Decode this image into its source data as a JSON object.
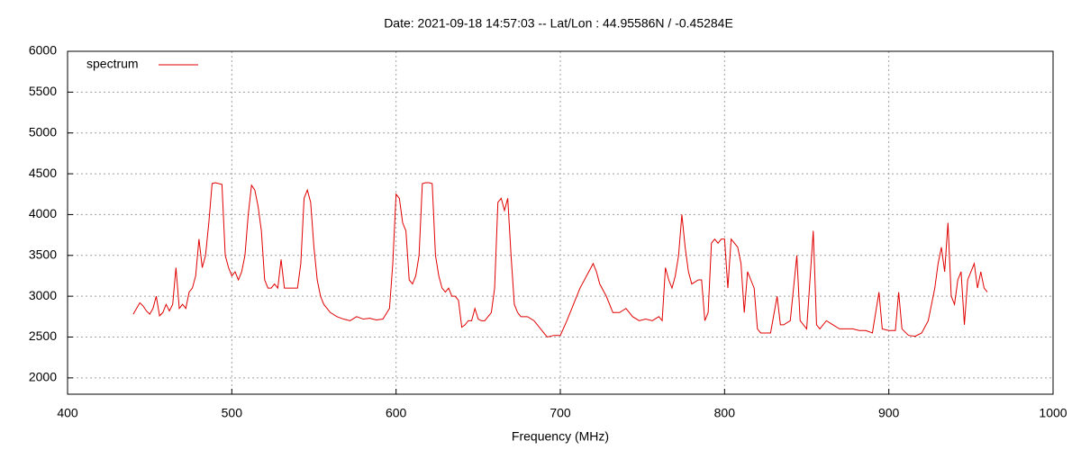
{
  "chart_data": {
    "type": "line",
    "title": "Date: 2021-09-18 14:57:03  --  Lat/Lon : 44.95586N / -0.45284E",
    "x_label": "Frequency (MHz)",
    "xlim": [
      400,
      1000
    ],
    "xticks": [
      400,
      500,
      600,
      700,
      800,
      900,
      1000
    ],
    "ylim": [
      1800,
      6000
    ],
    "yticks": [
      2000,
      2500,
      3000,
      3500,
      4000,
      4500,
      5000,
      5500,
      6000
    ],
    "grid": true,
    "legend": "top-left",
    "x": [
      440,
      442,
      444,
      446,
      448,
      450,
      452,
      454,
      456,
      458,
      460,
      462,
      464,
      466,
      468,
      470,
      472,
      474,
      476,
      478,
      480,
      482,
      484,
      486,
      488,
      490,
      492,
      494,
      496,
      498,
      500,
      502,
      504,
      506,
      508,
      510,
      512,
      514,
      516,
      518,
      520,
      522,
      524,
      526,
      528,
      530,
      532,
      534,
      536,
      538,
      540,
      542,
      544,
      546,
      548,
      550,
      552,
      554,
      556,
      560,
      564,
      568,
      572,
      576,
      580,
      584,
      588,
      592,
      596,
      598,
      600,
      602,
      604,
      606,
      608,
      610,
      612,
      614,
      616,
      618,
      620,
      622,
      624,
      626,
      628,
      630,
      632,
      634,
      636,
      638,
      640,
      642,
      644,
      646,
      648,
      650,
      652,
      654,
      656,
      658,
      660,
      662,
      664,
      666,
      668,
      670,
      672,
      674,
      676,
      680,
      684,
      688,
      692,
      696,
      700,
      704,
      708,
      712,
      716,
      720,
      722,
      724,
      728,
      732,
      736,
      740,
      744,
      748,
      752,
      756,
      760,
      762,
      764,
      766,
      768,
      770,
      772,
      774,
      776,
      778,
      780,
      784,
      786,
      788,
      790,
      792,
      794,
      796,
      798,
      800,
      802,
      804,
      806,
      808,
      810,
      812,
      814,
      816,
      818,
      820,
      822,
      824,
      828,
      832,
      834,
      836,
      840,
      844,
      846,
      848,
      850,
      852,
      854,
      856,
      858,
      862,
      866,
      870,
      874,
      878,
      882,
      886,
      890,
      894,
      896,
      900,
      904,
      906,
      908,
      912,
      916,
      920,
      924,
      926,
      928,
      930,
      932,
      934,
      936,
      938,
      940,
      942,
      944,
      946,
      948,
      950,
      952,
      954,
      956,
      958,
      960
    ],
    "series": [
      {
        "name": "spectrum",
        "color": "#e00000",
        "values": [
          2780,
          2850,
          2920,
          2880,
          2820,
          2780,
          2850,
          3000,
          2760,
          2800,
          2900,
          2820,
          2900,
          3350,
          2850,
          2900,
          2850,
          3050,
          3100,
          3250,
          3700,
          3350,
          3500,
          3900,
          4380,
          4390,
          4380,
          4370,
          3500,
          3350,
          3250,
          3300,
          3200,
          3300,
          3500,
          4000,
          4360,
          4300,
          4100,
          3800,
          3200,
          3100,
          3100,
          3150,
          3100,
          3450,
          3100,
          3100,
          3100,
          3100,
          3100,
          3400,
          4200,
          4300,
          4150,
          3600,
          3200,
          3000,
          2900,
          2800,
          2750,
          2720,
          2700,
          2750,
          2720,
          2730,
          2710,
          2720,
          2850,
          3400,
          4250,
          4200,
          3900,
          3800,
          3200,
          3150,
          3250,
          3500,
          4380,
          4390,
          4390,
          4380,
          3500,
          3250,
          3100,
          3050,
          3100,
          3000,
          3000,
          2950,
          2620,
          2650,
          2700,
          2700,
          2850,
          2720,
          2700,
          2700,
          2750,
          2800,
          3100,
          4150,
          4200,
          4050,
          4200,
          3500,
          2900,
          2800,
          2750,
          2750,
          2700,
          2600,
          2500,
          2520,
          2520,
          2700,
          2900,
          3100,
          3250,
          3400,
          3300,
          3150,
          3000,
          2800,
          2800,
          2850,
          2750,
          2700,
          2720,
          2700,
          2750,
          2700,
          3350,
          3200,
          3100,
          3250,
          3500,
          4000,
          3600,
          3300,
          3150,
          3200,
          3200,
          2700,
          2800,
          3650,
          3700,
          3650,
          3700,
          3700,
          3100,
          3700,
          3650,
          3600,
          3400,
          2800,
          3300,
          3200,
          3100,
          2600,
          2550,
          2550,
          2550,
          3000,
          2650,
          2650,
          2700,
          3500,
          2700,
          2650,
          2600,
          3200,
          3800,
          2650,
          2600,
          2700,
          2650,
          2600,
          2600,
          2600,
          2580,
          2580,
          2550,
          3050,
          2600,
          2580,
          2580,
          3050,
          2600,
          2520,
          2510,
          2550,
          2700,
          2900,
          3100,
          3400,
          3600,
          3300,
          3900,
          3000,
          2900,
          3200,
          3300,
          2650,
          3200,
          3300,
          3400,
          3100,
          3300,
          3100,
          3050
        ]
      }
    ]
  }
}
